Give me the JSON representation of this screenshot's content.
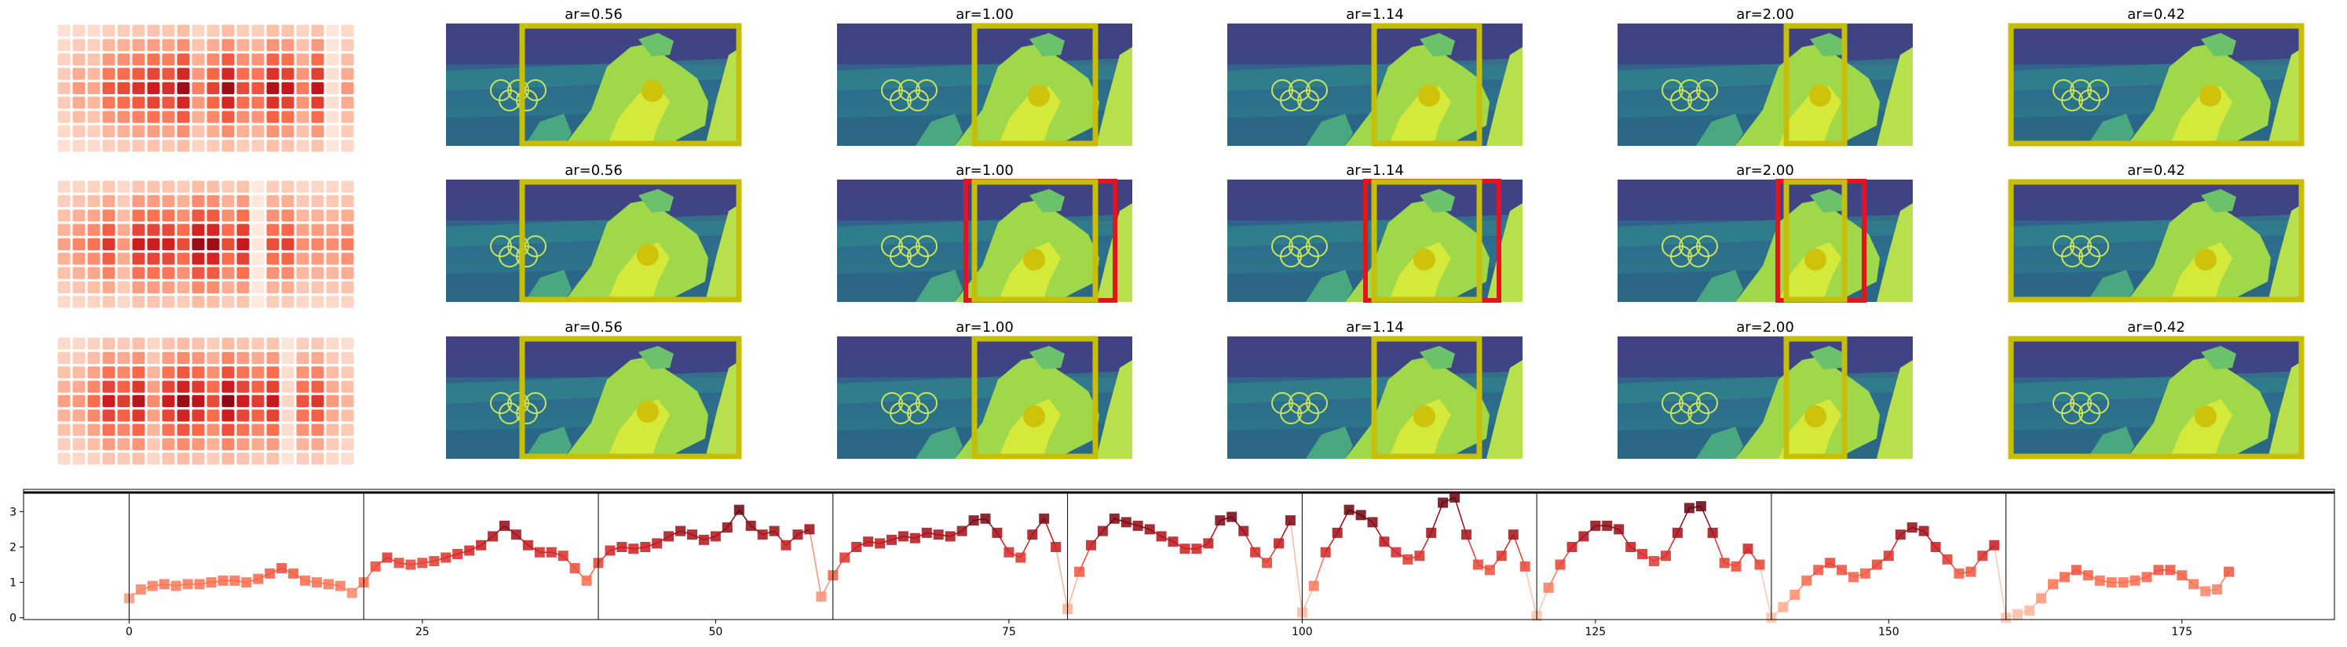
{
  "chart_data": [
    {
      "type": "heatmap",
      "panel": "video-frame-grid",
      "rows": 3,
      "heatmap_columns": 20,
      "heatmap_rows": 9,
      "columns": [
        "ar=0.56",
        "ar=1.00",
        "ar=1.14",
        "ar=2.00",
        "ar=0.42"
      ],
      "red_outline_rows": [
        1
      ],
      "red_outline_columns": [
        "ar=1.00",
        "ar=1.14",
        "ar=2.00"
      ],
      "colors": {
        "box": "#c7be0a",
        "marker": "#cfc20a",
        "red_outline": "#e4141e",
        "frame_bg": "#3e4f8c"
      }
    },
    {
      "type": "line",
      "title": "",
      "xlabel": "",
      "ylabel": "",
      "xlim": [
        -9,
        188
      ],
      "ylim": [
        -0.05,
        3.45
      ],
      "xticks": [
        0,
        25,
        50,
        75,
        100,
        125,
        150,
        175
      ],
      "yticks": [
        0,
        1,
        2,
        3
      ],
      "segment_boundaries": [
        0,
        20,
        40,
        60,
        80,
        100,
        120,
        140,
        160
      ],
      "x": [
        0,
        1,
        2,
        3,
        4,
        5,
        6,
        7,
        8,
        9,
        10,
        11,
        12,
        13,
        14,
        15,
        16,
        17,
        18,
        19,
        20,
        21,
        22,
        23,
        24,
        25,
        26,
        27,
        28,
        29,
        30,
        31,
        32,
        33,
        34,
        35,
        36,
        37,
        38,
        39,
        40,
        41,
        42,
        43,
        44,
        45,
        46,
        47,
        48,
        49,
        50,
        51,
        52,
        53,
        54,
        55,
        56,
        57,
        58,
        59,
        60,
        61,
        62,
        63,
        64,
        65,
        66,
        67,
        68,
        69,
        70,
        71,
        72,
        73,
        74,
        75,
        76,
        77,
        78,
        79,
        80,
        81,
        82,
        83,
        84,
        85,
        86,
        87,
        88,
        89,
        90,
        91,
        92,
        93,
        94,
        95,
        96,
        97,
        98,
        99,
        100,
        101,
        102,
        103,
        104,
        105,
        106,
        107,
        108,
        109,
        110,
        111,
        112,
        113,
        114,
        115,
        116,
        117,
        118,
        119,
        120,
        121,
        122,
        123,
        124,
        125,
        126,
        127,
        128,
        129,
        130,
        131,
        132,
        133,
        134,
        135,
        136,
        137,
        138,
        139,
        140,
        141,
        142,
        143,
        144,
        145,
        146,
        147,
        148,
        149,
        150,
        151,
        152,
        153,
        154,
        155,
        156,
        157,
        158,
        159,
        160,
        161,
        162,
        163,
        164,
        165,
        166,
        167,
        168,
        169,
        170,
        171,
        172,
        173,
        174,
        175,
        176,
        177,
        178,
        179
      ],
      "y": [
        0.55,
        0.8,
        0.9,
        0.95,
        0.9,
        0.95,
        0.95,
        1.0,
        1.05,
        1.05,
        1.0,
        1.1,
        1.25,
        1.4,
        1.25,
        1.05,
        1.0,
        0.95,
        0.9,
        0.7,
        1.0,
        1.45,
        1.7,
        1.55,
        1.5,
        1.55,
        1.6,
        1.7,
        1.8,
        1.9,
        2.05,
        2.3,
        2.6,
        2.35,
        2.05,
        1.85,
        1.85,
        1.75,
        1.4,
        1.05,
        1.55,
        1.9,
        2.0,
        1.95,
        2.0,
        2.1,
        2.3,
        2.45,
        2.35,
        2.2,
        2.3,
        2.55,
        3.05,
        2.6,
        2.35,
        2.45,
        2.05,
        2.35,
        2.5,
        0.6,
        1.2,
        1.7,
        2.0,
        2.15,
        2.1,
        2.2,
        2.3,
        2.25,
        2.4,
        2.35,
        2.3,
        2.45,
        2.75,
        2.8,
        2.4,
        1.85,
        1.7,
        2.35,
        2.8,
        2.0,
        0.25,
        1.3,
        2.05,
        2.45,
        2.8,
        2.7,
        2.6,
        2.5,
        2.3,
        2.15,
        1.95,
        1.95,
        2.1,
        2.75,
        2.85,
        2.45,
        1.85,
        1.55,
        2.1,
        2.75,
        0.15,
        0.9,
        1.85,
        2.4,
        3.05,
        2.9,
        2.7,
        2.15,
        1.85,
        1.65,
        1.75,
        2.4,
        3.25,
        3.4,
        2.35,
        1.5,
        1.35,
        1.75,
        2.35,
        1.45,
        0.05,
        0.85,
        1.5,
        2.0,
        2.3,
        2.6,
        2.6,
        2.5,
        2.0,
        1.8,
        1.6,
        1.75,
        2.4,
        3.1,
        3.15,
        2.4,
        1.55,
        1.45,
        1.95,
        1.5,
        0.0,
        0.3,
        0.65,
        1.05,
        1.35,
        1.55,
        1.35,
        1.15,
        1.25,
        1.5,
        1.75,
        2.35,
        2.55,
        2.45,
        2.0,
        1.65,
        1.25,
        1.3,
        1.75,
        2.05,
        0.0,
        0.1,
        0.2,
        0.55,
        0.95,
        1.15,
        1.35,
        1.2,
        1.05,
        1.0,
        1.0,
        1.05,
        1.15,
        1.35,
        1.35,
        1.2,
        0.95,
        0.75,
        0.8,
        1.3
      ]
    }
  ]
}
